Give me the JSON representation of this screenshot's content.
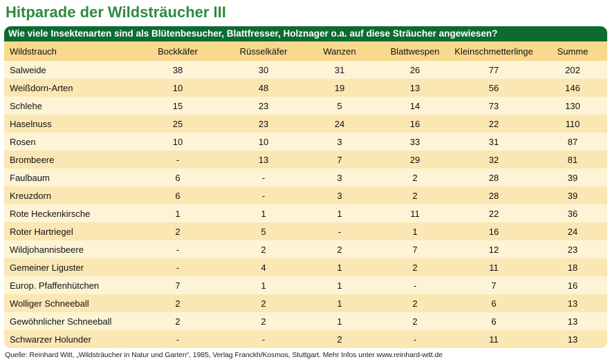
{
  "title": "Hitparade der Wildsträucher III",
  "question": "Wie viele Insektenarten sind als Blütenbesucher, Blattfresser, Holznager o.a. auf diese Sträucher angewiesen?",
  "source": "Quelle: Reinhard Witt, „Wildsträucher in Natur und Garten“, 1985, Verlag Franckh/Kosmos, Stuttgart. Mehr Infos unter www.reinhard-witt.de",
  "colors": {
    "title": "#2e8b3e",
    "header_bar": "#0d6b32",
    "column_header_bg": "#f8d98d",
    "row_light": "#fdf4d6",
    "row_dark": "#fbe7b4"
  },
  "chart_data": {
    "type": "table",
    "columns": [
      "Wildstrauch",
      "Bockkäfer",
      "Rüsselkäfer",
      "Wanzen",
      "Blattwespen",
      "Kleinschmetterlinge",
      "Summe"
    ],
    "rows": [
      [
        "Salweide",
        "38",
        "30",
        "31",
        "26",
        "77",
        "202"
      ],
      [
        "Weißdorn-Arten",
        "10",
        "48",
        "19",
        "13",
        "56",
        "146"
      ],
      [
        "Schlehe",
        "15",
        "23",
        "5",
        "14",
        "73",
        "130"
      ],
      [
        "Haselnuss",
        "25",
        "23",
        "24",
        "16",
        "22",
        "110"
      ],
      [
        "Rosen",
        "10",
        "10",
        "3",
        "33",
        "31",
        "87"
      ],
      [
        "Brombeere",
        "-",
        "13",
        "7",
        "29",
        "32",
        "81"
      ],
      [
        "Faulbaum",
        "6",
        "-",
        "3",
        "2",
        "28",
        "39"
      ],
      [
        "Kreuzdorn",
        "6",
        "-",
        "3",
        "2",
        "28",
        "39"
      ],
      [
        "Rote Heckenkirsche",
        "1",
        "1",
        "1",
        "11",
        "22",
        "36"
      ],
      [
        "Roter Hartriegel",
        "2",
        "5",
        "-",
        "1",
        "16",
        "24"
      ],
      [
        "Wildjohannisbeere",
        "-",
        "2",
        "2",
        "7",
        "12",
        "23"
      ],
      [
        "Gemeiner Liguster",
        "-",
        "4",
        "1",
        "2",
        "11",
        "18"
      ],
      [
        "Europ. Pfaffenhütchen",
        "7",
        "1",
        "1",
        "-",
        "7",
        "16"
      ],
      [
        "Wolliger Schneeball",
        "2",
        "2",
        "1",
        "2",
        "6",
        "13"
      ],
      [
        "Gewöhnlicher Schneeball",
        "2",
        "2",
        "1",
        "2",
        "6",
        "13"
      ],
      [
        "Schwarzer Holunder",
        "-",
        "-",
        "2",
        "-",
        "11",
        "13"
      ]
    ]
  }
}
